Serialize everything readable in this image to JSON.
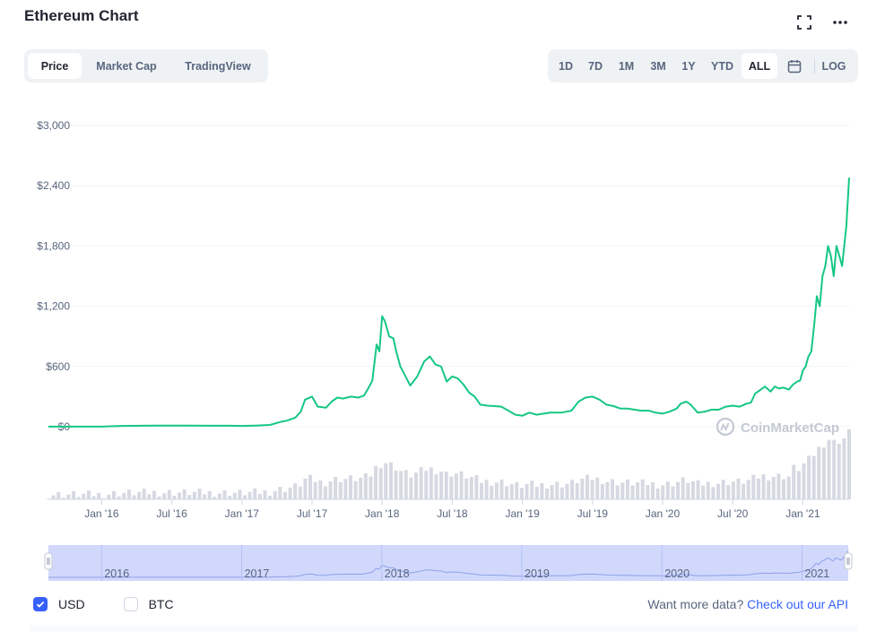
{
  "title": "Ethereum Chart",
  "icons": {
    "fullscreen": "fullscreen-icon",
    "more": "more-horizontal-icon",
    "calendar": "calendar-icon",
    "watermark": "coinmarketcap-logo-icon"
  },
  "tabs": [
    {
      "label": "Price",
      "active": true
    },
    {
      "label": "Market Cap",
      "active": false
    },
    {
      "label": "TradingView",
      "active": false
    }
  ],
  "ranges": [
    {
      "label": "1D",
      "active": false
    },
    {
      "label": "7D",
      "active": false
    },
    {
      "label": "1M",
      "active": false
    },
    {
      "label": "3M",
      "active": false
    },
    {
      "label": "1Y",
      "active": false
    },
    {
      "label": "YTD",
      "active": false
    },
    {
      "label": "ALL",
      "active": true
    }
  ],
  "log_label": "LOG",
  "watermark": "CoinMarketCap",
  "colors": {
    "line": "#16c784",
    "volume": "#d6d9e1",
    "navigator": "#c9d1fc",
    "accent": "#3861fb",
    "grid": "#eff2f5"
  },
  "footer": {
    "usd_label": "USD",
    "usd_checked": true,
    "btc_label": "BTC",
    "btc_checked": false,
    "more_text": "Want more data?",
    "link_text": "Check out our API"
  },
  "navigator_labels": [
    "2016",
    "2017",
    "2018",
    "2019",
    "2020",
    "2021"
  ],
  "chart_data": {
    "type": "line",
    "title": "",
    "y_ticks": [
      "$3,000",
      "$2,400",
      "$1,800",
      "$1,200",
      "$600",
      "$0"
    ],
    "y_tick_values": [
      3000,
      2400,
      1800,
      1200,
      600,
      0
    ],
    "ylim": [
      0,
      3000
    ],
    "x_ticks": [
      "Jan '16",
      "Jul '16",
      "Jan '17",
      "Jul '17",
      "Jan '18",
      "Jul '18",
      "Jan '19",
      "Jul '19",
      "Jan '20",
      "Jul '20",
      "Jan '21"
    ],
    "x_tick_values": [
      2016.0,
      2016.5,
      2017.0,
      2017.5,
      2018.0,
      2018.5,
      2019.0,
      2019.5,
      2020.0,
      2020.5,
      2021.0
    ],
    "xlim": [
      2015.62,
      2021.33
    ],
    "grid": true,
    "series": [
      {
        "x": [
          2015.62,
          2015.75,
          2015.9,
          2016.0,
          2016.15,
          2016.3,
          2016.4,
          2016.5,
          2016.6,
          2016.75,
          2016.9,
          2017.0,
          2017.1,
          2017.2,
          2017.28,
          2017.32,
          2017.38,
          2017.42,
          2017.45,
          2017.5,
          2017.54,
          2017.6,
          2017.64,
          2017.68,
          2017.72,
          2017.78,
          2017.83,
          2017.87,
          2017.9,
          2017.93,
          2017.96,
          2017.98,
          2018.0,
          2018.02,
          2018.05,
          2018.08,
          2018.1,
          2018.13,
          2018.16,
          2018.2,
          2018.25,
          2018.3,
          2018.34,
          2018.38,
          2018.42,
          2018.46,
          2018.5,
          2018.54,
          2018.58,
          2018.62,
          2018.66,
          2018.7,
          2018.75,
          2018.8,
          2018.85,
          2018.9,
          2018.95,
          2019.0,
          2019.05,
          2019.1,
          2019.2,
          2019.28,
          2019.35,
          2019.4,
          2019.45,
          2019.5,
          2019.55,
          2019.6,
          2019.65,
          2019.7,
          2019.75,
          2019.8,
          2019.85,
          2019.9,
          2019.95,
          2020.0,
          2020.05,
          2020.1,
          2020.13,
          2020.17,
          2020.2,
          2020.25,
          2020.3,
          2020.35,
          2020.4,
          2020.45,
          2020.5,
          2020.55,
          2020.6,
          2020.63,
          2020.66,
          2020.7,
          2020.73,
          2020.77,
          2020.8,
          2020.83,
          2020.86,
          2020.9,
          2020.93,
          2020.96,
          2020.98,
          2021.0,
          2021.02,
          2021.04,
          2021.06,
          2021.08,
          2021.1,
          2021.12,
          2021.14,
          2021.16,
          2021.18,
          2021.2,
          2021.22,
          2021.24,
          2021.26,
          2021.28,
          2021.31,
          2021.33
        ],
        "y": [
          1,
          1,
          1,
          1,
          8,
          10,
          12,
          12,
          11,
          10,
          10,
          8,
          12,
          18,
          50,
          60,
          90,
          150,
          270,
          300,
          200,
          190,
          250,
          290,
          280,
          300,
          290,
          310,
          380,
          460,
          820,
          750,
          1100,
          1050,
          900,
          880,
          750,
          600,
          520,
          410,
          500,
          650,
          700,
          620,
          600,
          450,
          500,
          480,
          420,
          340,
          300,
          220,
          210,
          205,
          200,
          160,
          120,
          110,
          140,
          120,
          140,
          140,
          160,
          250,
          290,
          300,
          270,
          220,
          205,
          180,
          180,
          170,
          160,
          160,
          140,
          130,
          150,
          180,
          230,
          250,
          220,
          140,
          150,
          170,
          170,
          200,
          210,
          200,
          230,
          240,
          330,
          370,
          400,
          350,
          400,
          380,
          390,
          370,
          420,
          450,
          460,
          560,
          600,
          700,
          750,
          1000,
          1300,
          1200,
          1500,
          1600,
          1800,
          1700,
          1500,
          1800,
          1700,
          1600,
          2000,
          2480
        ]
      }
    ]
  }
}
